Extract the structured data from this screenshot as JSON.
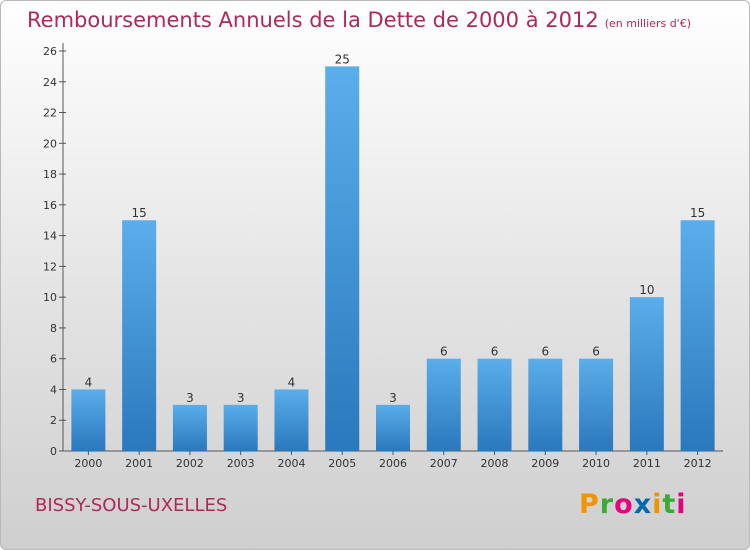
{
  "title": "Remboursements Annuels de la Dette de 2000 à 2012",
  "title_unit": "(en milliers d'€)",
  "commune": "BISSY-SOUS-UXELLES",
  "brand": {
    "text": "Proxiti",
    "letters": [
      "P",
      "r",
      "o",
      "x",
      "i",
      "t",
      "i"
    ],
    "colors": [
      "#f29400",
      "#3aaa35",
      "#e6007e",
      "#0069b4",
      "#f29400",
      "#3aaa35",
      "#e6007e"
    ]
  },
  "colors": {
    "bar_light": "#5aaeea",
    "bar_dark": "#2a78bd",
    "title": "#b0285a"
  },
  "chart_data": {
    "type": "bar",
    "title": "Remboursements Annuels de la Dette de 2000 à 2012",
    "categories": [
      "2000",
      "2001",
      "2002",
      "2003",
      "2004",
      "2005",
      "2006",
      "2007",
      "2008",
      "2009",
      "2010",
      "2011",
      "2012"
    ],
    "values": [
      4,
      15,
      3,
      3,
      4,
      25,
      3,
      6,
      6,
      6,
      6,
      10,
      15
    ],
    "value_labels": [
      "4",
      "15",
      "3",
      "3",
      "4",
      "25",
      "3",
      "6",
      "6",
      "6",
      "6",
      "10",
      "15"
    ],
    "ylim": [
      0,
      26
    ],
    "yticks": [
      0,
      2,
      4,
      6,
      8,
      10,
      12,
      14,
      16,
      18,
      20,
      22,
      24,
      26
    ],
    "grid": false,
    "legend": "none"
  }
}
